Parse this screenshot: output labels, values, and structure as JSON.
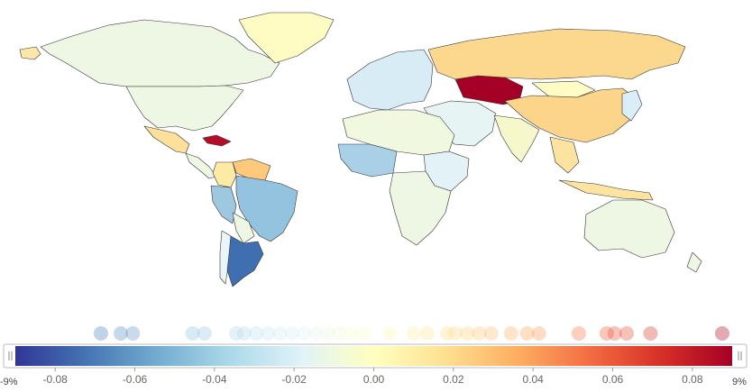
{
  "map": {
    "highlight_colors": {
      "strong_positive": "#a50026",
      "positive": "#fdb863",
      "mild_positive": "#fee090",
      "neutral": "#ffffbf",
      "mild_negative": "#e0f3f8",
      "negative": "#91bfdb",
      "strong_negative": "#4575b4"
    },
    "regions": [
      {
        "name": "Canada",
        "color": "#edf7e3"
      },
      {
        "name": "USA",
        "color": "#edf7e3"
      },
      {
        "name": "Alaska",
        "color": "#fde7a8"
      },
      {
        "name": "Greenland",
        "color": "#fefcc2"
      },
      {
        "name": "Mexico",
        "color": "#fde09a"
      },
      {
        "name": "Cuba",
        "color": "#b40d2a"
      },
      {
        "name": "Central America",
        "color": "#edf7e3"
      },
      {
        "name": "Venezuela",
        "color": "#fec97a"
      },
      {
        "name": "Colombia",
        "color": "#fdeaa4"
      },
      {
        "name": "Peru",
        "color": "#9ec8e0"
      },
      {
        "name": "Brazil",
        "color": "#93c3de"
      },
      {
        "name": "Bolivia",
        "color": "#edf7e3"
      },
      {
        "name": "Argentina",
        "color": "#3f6fb0"
      },
      {
        "name": "Chile",
        "color": "#e9f5f9"
      },
      {
        "name": "Russia",
        "color": "#fcd88e"
      },
      {
        "name": "Kazakhstan",
        "color": "#a50026"
      },
      {
        "name": "China",
        "color": "#fcd58a"
      },
      {
        "name": "Mongolia",
        "color": "#fefbc4"
      },
      {
        "name": "India",
        "color": "#f6f8cc"
      },
      {
        "name": "Australia",
        "color": "#edf7e3"
      },
      {
        "name": "Africa North",
        "color": "#f1f8e0"
      },
      {
        "name": "Africa West",
        "color": "#a9d0e6"
      },
      {
        "name": "Africa East",
        "color": "#e3f2f7"
      },
      {
        "name": "Africa South",
        "color": "#edf7e3"
      },
      {
        "name": "Europe",
        "color": "#d7ecf5"
      },
      {
        "name": "Middle East",
        "color": "#e7f4f4"
      },
      {
        "name": "Southeast Asia",
        "color": "#fde3a0"
      },
      {
        "name": "Japan",
        "color": "#d9eef6"
      }
    ]
  },
  "legend": {
    "min_label": "-9%",
    "max_label": "9%",
    "ticks": [
      {
        "label": "-0.08",
        "value": -0.08
      },
      {
        "label": "-0.06",
        "value": -0.06
      },
      {
        "label": "-0.04",
        "value": -0.04
      },
      {
        "label": "-0.02",
        "value": -0.02
      },
      {
        "label": "0.00",
        "value": 0.0
      },
      {
        "label": "0.02",
        "value": 0.02
      },
      {
        "label": "0.04",
        "value": 0.04
      },
      {
        "label": "0.06",
        "value": 0.06
      },
      {
        "label": "0.08",
        "value": 0.08
      }
    ],
    "value_min": -0.09,
    "value_max": 0.09,
    "scale_colors": [
      "#313695",
      "#4575b4",
      "#74add1",
      "#abd9e9",
      "#e0f3f8",
      "#ffffbf",
      "#fee090",
      "#fdae61",
      "#f46d43",
      "#d73027",
      "#a50026"
    ],
    "data_points": [
      -0.0685,
      -0.0635,
      -0.0605,
      -0.0455,
      -0.0425,
      -0.0345,
      -0.0325,
      -0.0295,
      -0.0265,
      -0.0235,
      -0.0205,
      -0.0175,
      -0.0145,
      -0.0115,
      -0.0085,
      -0.0055,
      -0.0025,
      0.004,
      0.01,
      0.0135,
      0.0185,
      0.0205,
      0.0235,
      0.0265,
      0.0295,
      0.0345,
      0.0385,
      0.0415,
      0.0515,
      0.0585,
      0.0605,
      0.0635,
      0.0695,
      0.0875
    ]
  }
}
